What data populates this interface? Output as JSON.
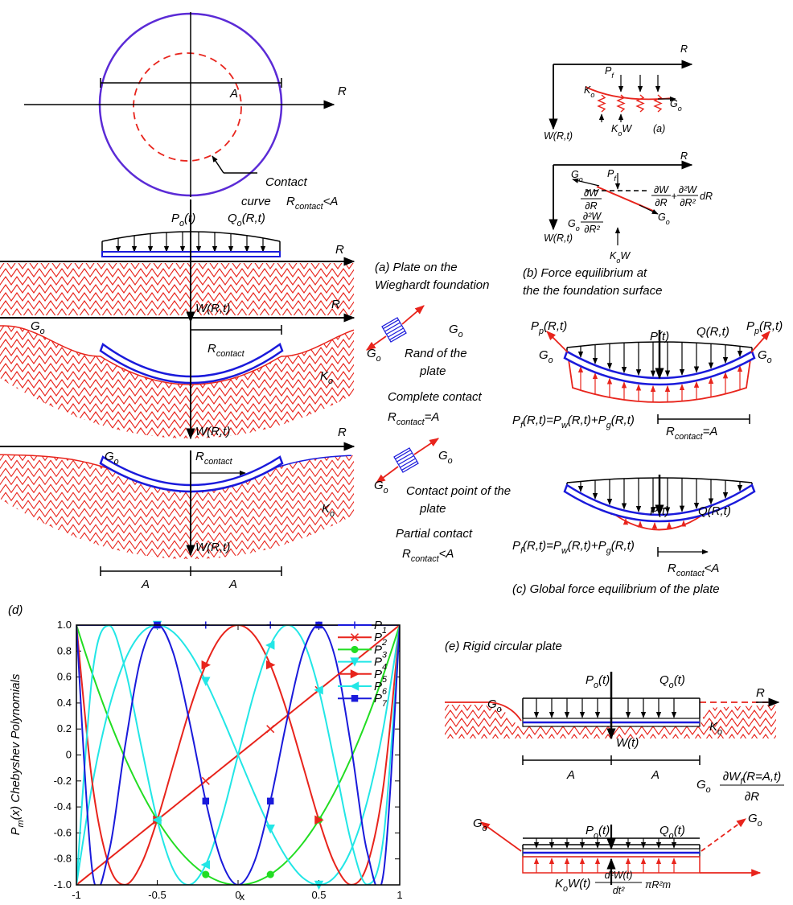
{
  "labels": {
    "top_R": "R",
    "top_A": "A",
    "contact": "Contact",
    "curve": "curve",
    "top_cond": [
      "R",
      "contact",
      "<A"
    ],
    "a_P": [
      "P",
      "o",
      "(t)"
    ],
    "a_Q": [
      "Q",
      "o",
      "(R,t)"
    ],
    "a_R": "R",
    "a_W": "W(R,t)",
    "a_cap1": "(a) Plate on the",
    "a_cap2": "Wieghardt foundation",
    "cc_R": "R",
    "cc_Go": [
      "G",
      "o"
    ],
    "cc_Rc": [
      "R",
      "contact"
    ],
    "cc_Ko": [
      "K",
      "o"
    ],
    "cc_W": "W(R,t)",
    "cc_Go1": [
      "G",
      "o"
    ],
    "cc_Go2": [
      "G",
      "o"
    ],
    "cc_rand1": "Rand of the",
    "cc_rand2": "plate",
    "cc_cap": "Complete contact",
    "cc_cond": [
      "R",
      "contact",
      "=A"
    ],
    "pc_R": "R",
    "pc_Go": [
      "G",
      "o"
    ],
    "pc_Rc": [
      "R",
      "contact"
    ],
    "pc_Ko": [
      "K",
      "o"
    ],
    "pc_W": "W(R,t)",
    "pc_Go1": [
      "G",
      "o"
    ],
    "pc_Go2": [
      "G",
      "o"
    ],
    "pc_pt1": "Contact point of the",
    "pc_pt2": "plate",
    "pc_cap": "Partial contact",
    "pc_cond": [
      "R",
      "contact",
      "<A"
    ],
    "dim_A1": "A",
    "dim_A2": "A",
    "ra_R": "R",
    "ra_W": "W(R,t)",
    "ra_Ko": [
      "K",
      "o"
    ],
    "ra_Pf": [
      "P",
      "f"
    ],
    "ra_Go": [
      "G",
      "o"
    ],
    "ra_KoW": [
      "K",
      "o",
      "W"
    ],
    "ra_cap": "(a)",
    "rb_R": "R",
    "rb_W": "W(R,t)",
    "rb_Go1": [
      "G",
      "o"
    ],
    "rb_Pf": [
      "P",
      "f"
    ],
    "rb_f1n": "∂W",
    "rb_f1d": "∂R",
    "rb_f2n": "∂W",
    "rb_f2d": "∂R",
    "rb_plus": "+",
    "rb_f3n": "∂²W",
    "rb_f3d": "∂R²",
    "rb_dR": "dR",
    "rb_Go2": [
      "G",
      "o"
    ],
    "rb_f4n": "∂²W",
    "rb_f4d": "∂R²",
    "rb_Go3": [
      "G",
      "o"
    ],
    "rb_KoW": [
      "K",
      "o",
      "W"
    ],
    "rb_cap1": "(b) Force equilibrium at",
    "rb_cap2": "the the foundation surface",
    "c_Pp1": [
      "P",
      "p",
      "(R,t)"
    ],
    "c_P": "P(t)",
    "c_Q": "Q(R,t)",
    "c_Pp2": [
      "P",
      "p",
      "(R,t)"
    ],
    "c_Go1": [
      "G",
      "o"
    ],
    "c_Go2": [
      "G",
      "o"
    ],
    "c_eq1": [
      "P",
      "f",
      "(R,t)=P",
      "w",
      "(R,t)+P",
      "g",
      "(R,t)"
    ],
    "c_Rc1": [
      "R",
      "contact",
      "=A"
    ],
    "c_P2": "P(t)",
    "c_Q2": "Q(R,t)",
    "c_eq2": [
      "P",
      "f",
      "(R,t)=P",
      "w",
      "(R,t)+P",
      "g",
      "(R,t)"
    ],
    "c_Rc2": [
      "R",
      "contact",
      "<A"
    ],
    "c_cap": "(c) Global force equilibrium of the plate",
    "e_cap": "(e) Rigid circular plate",
    "e_P": [
      "P",
      "o",
      "(t)"
    ],
    "e_Q": [
      "Q",
      "o",
      "(t)"
    ],
    "e_Go": [
      "G",
      "o"
    ],
    "e_R": "R",
    "e_Ko": [
      "K",
      "o"
    ],
    "e_W": "W(t)",
    "e_A1": "A",
    "e_A2": "A",
    "e_Go2": [
      "G",
      "o"
    ],
    "e_fn": [
      "∂W",
      "f",
      "(R=A,t)"
    ],
    "e_fd": "∂R",
    "e_Go3": [
      "G",
      "o"
    ],
    "e_P2": [
      "P",
      "o",
      "(t)"
    ],
    "e_Q2": [
      "Q",
      "o",
      "(t)"
    ],
    "e_Go4": [
      "G",
      "o"
    ],
    "e_KoW": [
      "K",
      "o",
      "W(t)"
    ],
    "e_mn": "d²W(t)",
    "e_md": "dt²",
    "e_m": "πR²m"
  },
  "chart_data": {
    "type": "line",
    "panel_label": "(d)",
    "xlabel": "x",
    "ylabel": [
      "P",
      "m",
      "(x)    Chebyshev Polynomials"
    ],
    "xlim": [
      -1,
      1
    ],
    "xticks": [
      -1,
      -0.5,
      0,
      0.5,
      1
    ],
    "ylim": [
      -1,
      1
    ],
    "yticks": [
      {
        "value": -1,
        "label": "-1.0"
      },
      -0.8,
      -0.6,
      -0.4,
      -0.2,
      0,
      0.2,
      0.4,
      0.6,
      0.8,
      {
        "value": 1,
        "label": "1.0"
      }
    ],
    "legend": "upper right",
    "x": [
      -1,
      -0.9,
      -0.8,
      -0.7,
      -0.6,
      -0.5,
      -0.4,
      -0.3,
      -0.2,
      -0.1,
      0,
      0.1,
      0.2,
      0.3,
      0.4,
      0.5,
      0.6,
      0.7,
      0.8,
      0.9,
      1
    ],
    "series": [
      {
        "name": [
          "P",
          "1"
        ],
        "color": "#1a1adb",
        "marker": "plus",
        "values": [
          1,
          1,
          1,
          1,
          1,
          1,
          1,
          1,
          1,
          1,
          1,
          1,
          1,
          1,
          1,
          1,
          1,
          1,
          1,
          1,
          1
        ]
      },
      {
        "name": [
          "P",
          "2"
        ],
        "color": "#e8241c",
        "marker": "cross",
        "values": [
          -1,
          -0.9,
          -0.8,
          -0.7,
          -0.6,
          -0.5,
          -0.4,
          -0.3,
          -0.2,
          -0.1,
          0,
          0.1,
          0.2,
          0.3,
          0.4,
          0.5,
          0.6,
          0.7,
          0.8,
          0.9,
          1
        ]
      },
      {
        "name": [
          "P",
          "3"
        ],
        "color": "#22dd22",
        "marker": "circle",
        "values": [
          1,
          0.62,
          0.28,
          -0.02,
          -0.28,
          -0.5,
          -0.68,
          -0.82,
          -0.92,
          -0.98,
          -1,
          -0.98,
          -0.92,
          -0.82,
          -0.68,
          -0.5,
          -0.28,
          -0.02,
          0.28,
          0.62,
          1
        ]
      },
      {
        "name": [
          "P",
          "4"
        ],
        "color": "#22e6e6",
        "marker": "tri-down",
        "values": [
          -1,
          -0.216,
          0.352,
          0.728,
          0.936,
          1,
          0.944,
          0.792,
          0.568,
          0.296,
          0,
          -0.296,
          -0.568,
          -0.792,
          -0.944,
          -1,
          -0.936,
          -0.728,
          -0.352,
          0.216,
          1
        ]
      },
      {
        "name": [
          "P",
          "5"
        ],
        "color": "#e8241c",
        "marker": "tri-right",
        "values": [
          1,
          -0.231,
          -0.843,
          -0.999,
          -0.843,
          -0.5,
          -0.075,
          0.345,
          0.693,
          0.921,
          1,
          0.921,
          0.693,
          0.345,
          -0.075,
          -0.5,
          -0.843,
          -0.999,
          -0.843,
          -0.231,
          1
        ]
      },
      {
        "name": [
          "P",
          "6"
        ],
        "color": "#22e6e6",
        "marker": "tri-left",
        "values": [
          -1,
          0.632,
          0.997,
          0.671,
          0.076,
          -0.5,
          -0.884,
          -0.999,
          -0.845,
          -0.48,
          0,
          0.48,
          0.845,
          0.999,
          0.884,
          0.5,
          -0.076,
          -0.671,
          -0.997,
          -0.632,
          1
        ]
      },
      {
        "name": [
          "P",
          "7"
        ],
        "color": "#1a1adb",
        "marker": "square",
        "values": [
          1,
          -0.907,
          -0.752,
          0.06,
          0.752,
          1,
          0.782,
          0.254,
          -0.355,
          -0.825,
          -1,
          -0.825,
          -0.355,
          0.254,
          0.782,
          1,
          0.752,
          0.06,
          -0.752,
          -0.907,
          1
        ]
      }
    ]
  }
}
